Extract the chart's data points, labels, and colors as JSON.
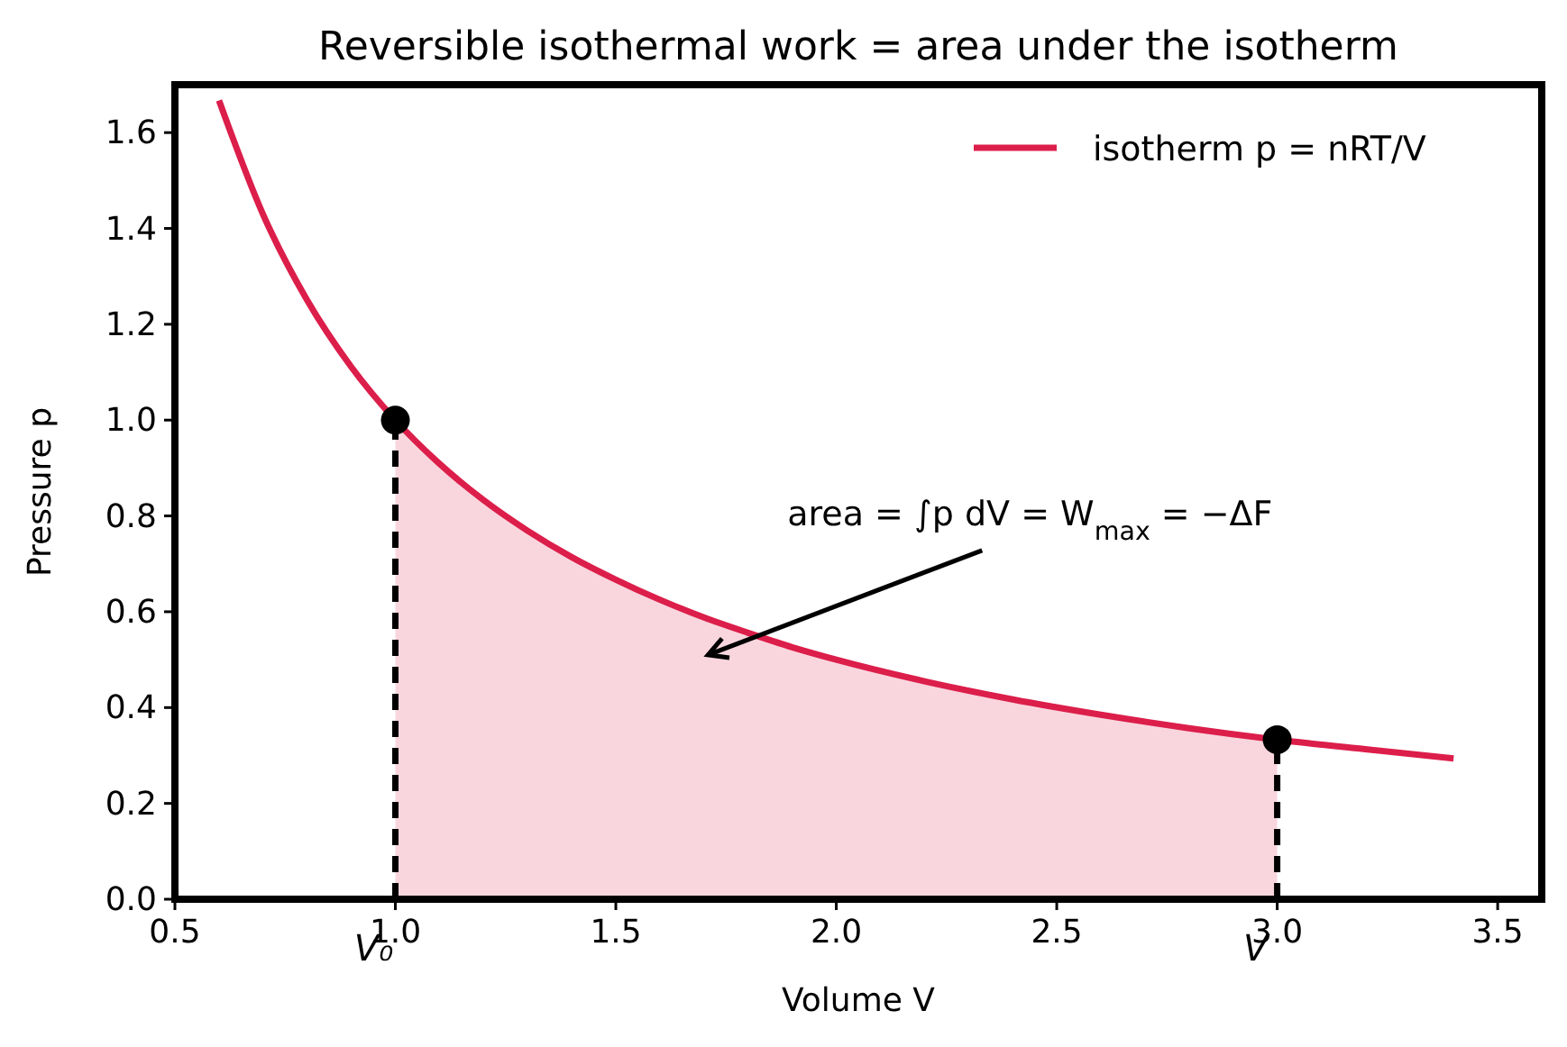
{
  "chart_data": {
    "type": "line",
    "title": "Reversible isothermal work = area under the isotherm",
    "xlabel": "Volume  V",
    "ylabel": "Pressure  p",
    "xlim": [
      0.5,
      3.6
    ],
    "ylim": [
      0,
      1.7
    ],
    "xticks": [
      0.5,
      {
        "value": 1,
        "label": "1.0"
      },
      1.5,
      {
        "value": 2,
        "label": "2.0"
      },
      2.5,
      {
        "value": 3,
        "label": "3.0"
      },
      3.5
    ],
    "yticks": [
      {
        "value": 0,
        "label": "0.0"
      },
      {
        "value": 0.2,
        "label": "0.2"
      },
      {
        "value": 0.4,
        "label": "0.4"
      },
      {
        "value": 0.6,
        "label": "0.6"
      },
      {
        "value": 0.8,
        "label": "0.8"
      },
      {
        "value": 1.0,
        "label": "1.0"
      },
      {
        "value": 1.2,
        "label": "1.2"
      },
      {
        "value": 1.4,
        "label": "1.4"
      },
      {
        "value": 1.6,
        "label": "1.6"
      }
    ],
    "grid": false,
    "legend": "top right",
    "series": [
      {
        "type": "area",
        "color": "#f9d6de",
        "x": [
          1.0,
          1.1,
          1.2,
          1.3,
          1.4,
          1.5,
          1.6,
          1.7,
          1.8,
          1.9,
          2.0,
          2.2,
          2.4,
          2.6,
          2.8,
          3.0
        ],
        "values": [
          1.0,
          0.909,
          0.833,
          0.769,
          0.714,
          0.667,
          0.625,
          0.588,
          0.556,
          0.526,
          0.5,
          0.455,
          0.417,
          0.385,
          0.357,
          0.333
        ]
      },
      {
        "name": "isotherm p = nRT/V",
        "color": "#dc1e4a",
        "line_style": "solid",
        "x": [
          0.6,
          0.7,
          0.8,
          0.9,
          1.0,
          1.1,
          1.2,
          1.3,
          1.4,
          1.5,
          1.6,
          1.7,
          1.8,
          1.9,
          2.0,
          2.2,
          2.4,
          2.6,
          2.8,
          3.0,
          3.2,
          3.4
        ],
        "values": [
          1.667,
          1.429,
          1.25,
          1.111,
          1.0,
          0.909,
          0.833,
          0.769,
          0.714,
          0.667,
          0.625,
          0.588,
          0.556,
          0.526,
          0.5,
          0.455,
          0.417,
          0.385,
          0.357,
          0.333,
          0.313,
          0.294
        ]
      },
      {
        "type": "scatter",
        "color": "#000000",
        "marker": "circle",
        "x": [
          1.0,
          3.0
        ],
        "values": [
          1.0,
          0.333
        ]
      }
    ],
    "ref_lines": [
      {
        "axis": "x",
        "value": 1.0,
        "label": "V₀",
        "color": "#000000",
        "line_style": "dashed"
      },
      {
        "axis": "x",
        "value": 3.0,
        "label": "V",
        "color": "#000000",
        "line_style": "dashed"
      }
    ],
    "annotations": [
      "area = ∫p dV = W$_{max}$ = −ΔF"
    ]
  }
}
